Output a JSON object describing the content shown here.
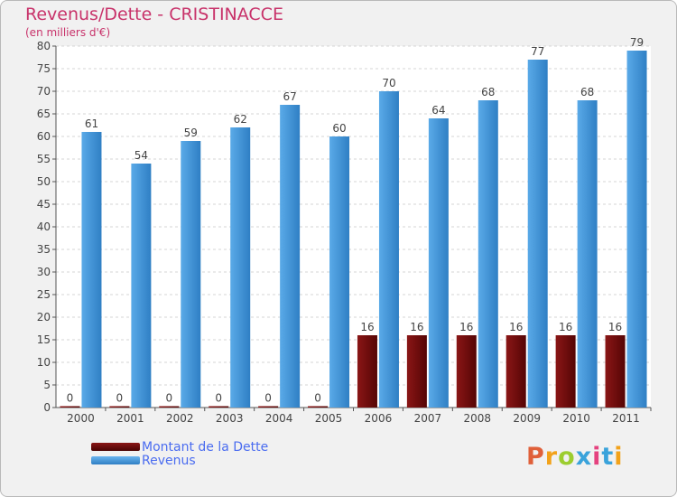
{
  "chart_data": {
    "type": "bar",
    "title": "Revenus/Dette - CRISTINACCE",
    "subtitle": "(en milliers d'€)",
    "categories": [
      "2000",
      "2001",
      "2002",
      "2003",
      "2004",
      "2005",
      "2006",
      "2007",
      "2008",
      "2009",
      "2010",
      "2011"
    ],
    "series": [
      {
        "name": "Montant de la Dette",
        "color": "#6b0a0a",
        "values": [
          0,
          0,
          0,
          0,
          0,
          0,
          16,
          16,
          16,
          16,
          16,
          16
        ]
      },
      {
        "name": "Revenus",
        "color": "#3d93d8",
        "values": [
          61,
          54,
          59,
          62,
          67,
          60,
          70,
          64,
          68,
          77,
          68,
          79
        ]
      }
    ],
    "ylim": [
      0,
      80
    ],
    "yticks": [
      0,
      5,
      10,
      15,
      20,
      25,
      30,
      35,
      40,
      45,
      50,
      55,
      60,
      65,
      70,
      75,
      80
    ],
    "grid": true,
    "legend_position": "bottom-left"
  },
  "logo": {
    "text": "Proxiti",
    "colors": [
      "#e0603a",
      "#f2a21a",
      "#9ccd2f",
      "#3aa3db",
      "#e5427f",
      "#3aa3db",
      "#f2a21a"
    ]
  }
}
